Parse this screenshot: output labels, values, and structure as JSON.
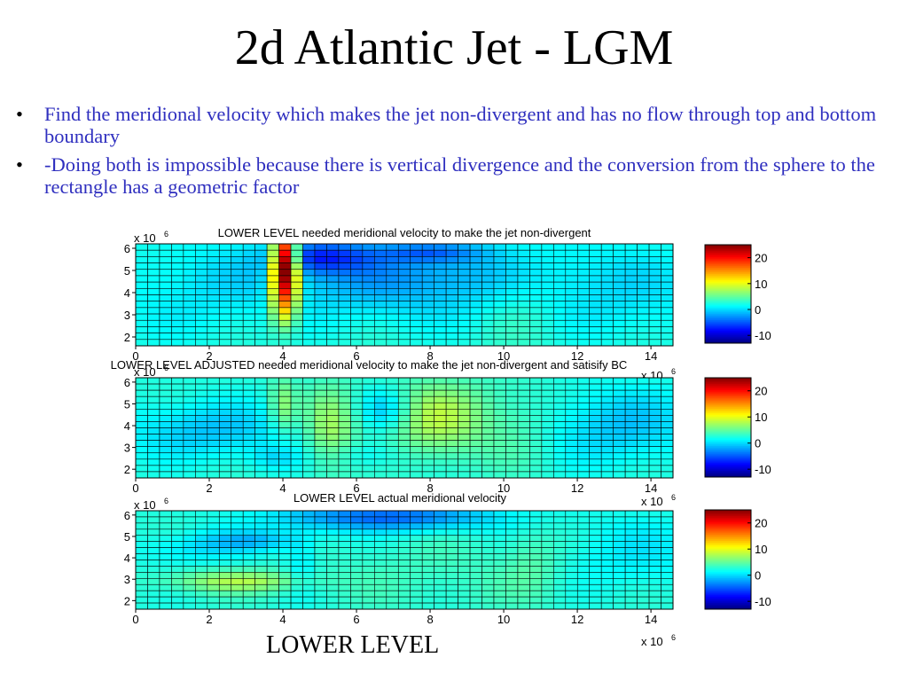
{
  "slide": {
    "title": "2d Atlantic Jet - LGM",
    "bullets": [
      "Find the meridional velocity which makes the jet non-divergent and has no flow through top and bottom boundary",
      "-Doing both is impossible because there is vertical divergence and the conversion from the sphere to the rectangle has a geometric factor"
    ],
    "footer_label": "LOWER LEVEL"
  },
  "chart_data": [
    {
      "type": "heatmap",
      "title": "LOWER LEVEL needed meridional velocity to make the jet non-divergent",
      "x_multiplier_label": "x 10",
      "x_multiplier_exponent": "6",
      "y_multiplier_label": "x 10",
      "y_multiplier_exponent": "6",
      "xlim": [
        0,
        14.6
      ],
      "ylim": [
        1.6,
        6.2
      ],
      "xticks": [
        0,
        2,
        4,
        6,
        8,
        10,
        12,
        14
      ],
      "yticks": [
        2,
        3,
        4,
        5,
        6
      ],
      "grid": true,
      "colorbar": {
        "ticks": [
          -10,
          0,
          10,
          20
        ],
        "range": [
          -13,
          25
        ],
        "colormap": "jet"
      },
      "features": [
        {
          "x": 7.3,
          "y": 4.8,
          "sx": 3.0,
          "sy": 1.3,
          "amp": -5
        },
        {
          "x": 5.0,
          "y": 5.6,
          "sx": 0.9,
          "sy": 0.5,
          "amp": -7
        },
        {
          "x": 8.0,
          "y": 5.8,
          "sx": 1.0,
          "sy": 0.3,
          "amp": -4
        },
        {
          "x": 1.5,
          "y": 4.0,
          "sx": 1.6,
          "sy": 1.6,
          "amp": -1.5
        },
        {
          "x": 13.5,
          "y": 4.0,
          "sx": 1.6,
          "sy": 1.5,
          "amp": -2
        },
        {
          "x": 10.5,
          "y": 4.0,
          "sx": 0.8,
          "sy": 1.6,
          "amp": 1.5
        },
        {
          "x": 4.05,
          "y": 5.3,
          "sx": 0.22,
          "sy": 1.0,
          "amp": 26
        },
        {
          "x": 4.05,
          "y": 3.5,
          "sx": 0.22,
          "sy": 0.8,
          "amp": 9
        },
        {
          "x": 3.75,
          "y": 4.5,
          "sx": 0.15,
          "sy": 1.2,
          "amp": 3
        },
        {
          "x": 4.4,
          "y": 4.5,
          "sx": 0.15,
          "sy": 1.2,
          "amp": 3
        }
      ]
    },
    {
      "type": "heatmap",
      "title": "LOWER LEVEL ADJUSTED needed meridional velocity to make the jet non-divergent and satisify BC",
      "x_multiplier_label": "x 10",
      "x_multiplier_exponent": "6",
      "y_multiplier_label": "x 10",
      "y_multiplier_exponent": "6",
      "xlim": [
        0,
        14.6
      ],
      "ylim": [
        1.6,
        6.2
      ],
      "xticks": [
        0,
        2,
        4,
        6,
        8,
        10,
        12,
        14
      ],
      "yticks": [
        2,
        3,
        4,
        5,
        6
      ],
      "grid": true,
      "colorbar": {
        "ticks": [
          -10,
          0,
          10,
          20
        ],
        "range": [
          -13,
          25
        ],
        "colormap": "jet"
      },
      "features": [
        {
          "x": 2.0,
          "y": 3.8,
          "sx": 1.6,
          "sy": 0.9,
          "amp": -3.5
        },
        {
          "x": 13.2,
          "y": 4.0,
          "sx": 1.4,
          "sy": 1.2,
          "amp": -3.5
        },
        {
          "x": 6.8,
          "y": 4.7,
          "sx": 0.5,
          "sy": 0.7,
          "amp": -4
        },
        {
          "x": 6.2,
          "y": 2.7,
          "sx": 0.8,
          "sy": 0.5,
          "amp": -2
        },
        {
          "x": 3.8,
          "y": 2.5,
          "sx": 0.5,
          "sy": 0.4,
          "amp": -2
        },
        {
          "x": 8.2,
          "y": 4.3,
          "sx": 1.0,
          "sy": 1.2,
          "amp": 5.5
        },
        {
          "x": 5.3,
          "y": 3.9,
          "sx": 0.5,
          "sy": 1.3,
          "amp": 5
        },
        {
          "x": 4.0,
          "y": 4.9,
          "sx": 0.25,
          "sy": 0.9,
          "amp": 4
        },
        {
          "x": 10.5,
          "y": 4.0,
          "sx": 0.7,
          "sy": 1.4,
          "amp": 1.5
        }
      ]
    },
    {
      "type": "heatmap",
      "title": "LOWER LEVEL actual meridional velocity",
      "x_multiplier_label": "x 10",
      "x_multiplier_exponent": "6",
      "y_multiplier_label": "x 10",
      "y_multiplier_exponent": "6",
      "xlim": [
        0,
        14.6
      ],
      "ylim": [
        1.6,
        6.2
      ],
      "xticks": [
        0,
        2,
        4,
        6,
        8,
        10,
        12,
        14
      ],
      "yticks": [
        2,
        3,
        4,
        5,
        6
      ],
      "grid": true,
      "colorbar": {
        "ticks": [
          -10,
          0,
          10,
          20
        ],
        "range": [
          -13,
          25
        ],
        "colormap": "jet"
      },
      "features": [
        {
          "x": 6.8,
          "y": 5.9,
          "sx": 2.0,
          "sy": 0.45,
          "amp": -7
        },
        {
          "x": 3.2,
          "y": 4.8,
          "sx": 1.0,
          "sy": 0.35,
          "amp": -3.5
        },
        {
          "x": 1.5,
          "y": 4.4,
          "sx": 1.0,
          "sy": 0.5,
          "amp": -2
        },
        {
          "x": 13.5,
          "y": 4.2,
          "sx": 1.4,
          "sy": 1.2,
          "amp": -2
        },
        {
          "x": 4.5,
          "y": 3.6,
          "sx": 0.3,
          "sy": 1.0,
          "amp": -2
        },
        {
          "x": 2.8,
          "y": 2.9,
          "sx": 1.3,
          "sy": 0.35,
          "amp": 5
        },
        {
          "x": 8.5,
          "y": 3.2,
          "sx": 2.5,
          "sy": 1.2,
          "amp": 1
        },
        {
          "x": 10.8,
          "y": 3.8,
          "sx": 0.5,
          "sy": 1.2,
          "amp": 1.5
        }
      ]
    }
  ]
}
